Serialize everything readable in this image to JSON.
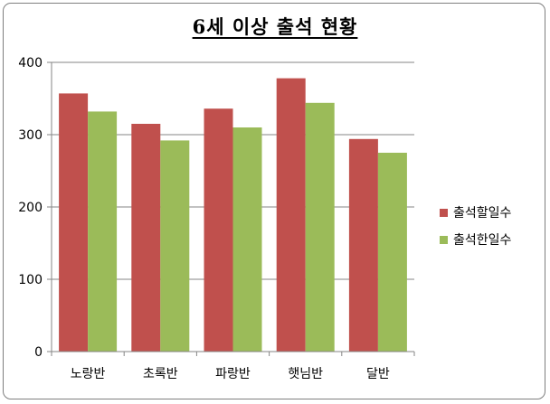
{
  "chart_data": {
    "type": "bar",
    "title": "6세 이상 출석 현황",
    "categories": [
      "노랑반",
      "초록반",
      "파랑반",
      "햇님반",
      "달반"
    ],
    "series": [
      {
        "name": "출석할일수",
        "color": "#c0504d",
        "values": [
          357,
          315,
          336,
          378,
          294
        ]
      },
      {
        "name": "출석한일수",
        "color": "#9bbb59",
        "values": [
          332,
          292,
          310,
          344,
          275
        ]
      }
    ],
    "ylim": [
      0,
      400
    ],
    "yticks": [
      "0",
      "100",
      "200",
      "300",
      "400"
    ],
    "grid": true,
    "legend_position": "right"
  }
}
